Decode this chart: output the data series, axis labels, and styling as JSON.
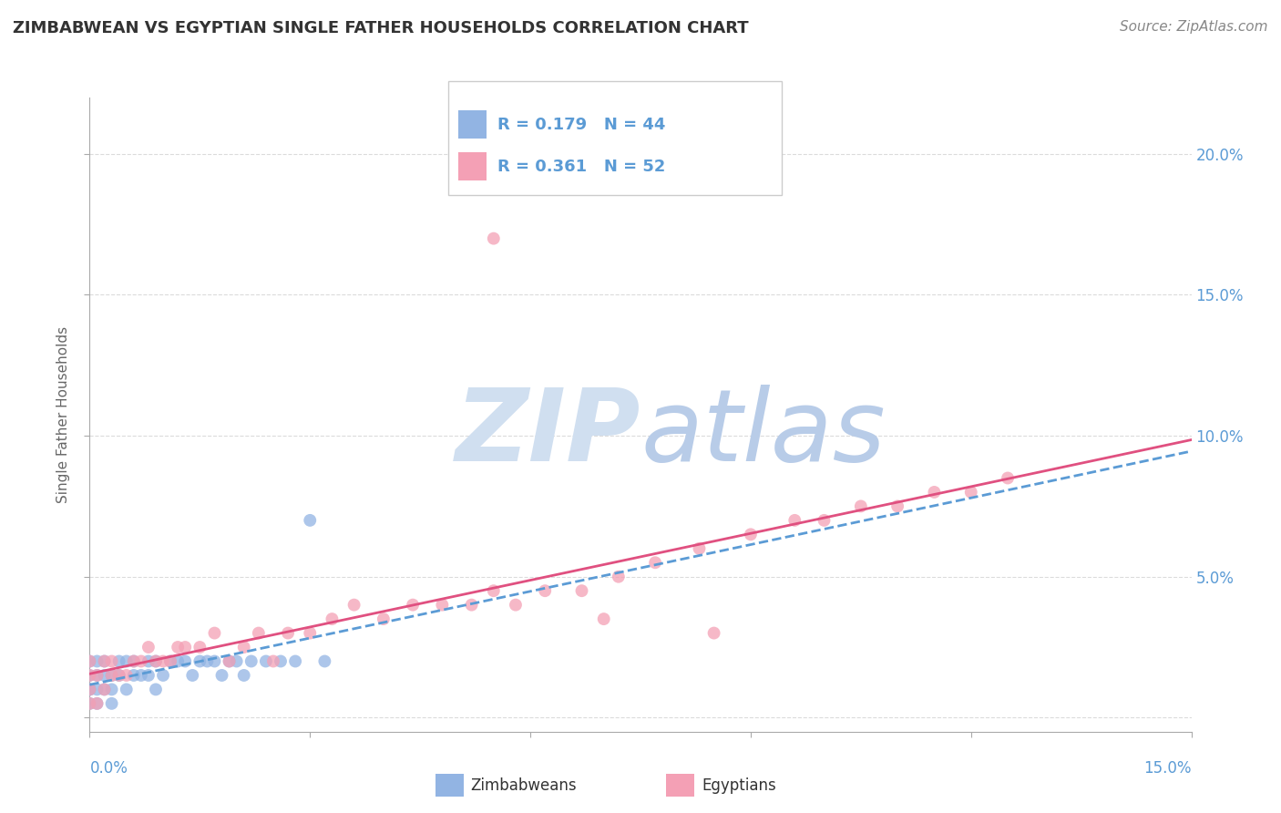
{
  "title": "ZIMBABWEAN VS EGYPTIAN SINGLE FATHER HOUSEHOLDS CORRELATION CHART",
  "source": "Source: ZipAtlas.com",
  "ylabel": "Single Father Households",
  "xmin": 0.0,
  "xmax": 0.15,
  "ymin": -0.005,
  "ymax": 0.22,
  "yticks": [
    0.0,
    0.05,
    0.1,
    0.15,
    0.2
  ],
  "ytick_labels": [
    "",
    "5.0%",
    "10.0%",
    "15.0%",
    "20.0%"
  ],
  "xticks": [
    0.0,
    0.03,
    0.06,
    0.09,
    0.12,
    0.15
  ],
  "r_zimbabwean": 0.179,
  "n_zimbabwean": 44,
  "r_egyptian": 0.361,
  "n_egyptian": 52,
  "zim_color": "#92b4e3",
  "egy_color": "#f4a0b5",
  "zim_line_color": "#5b9bd5",
  "egy_line_color": "#e05080",
  "watermark_color": "#d0dff0",
  "grid_color": "#cccccc",
  "title_color": "#333333",
  "right_label_color": "#5b9bd5",
  "zim_x": [
    0.0,
    0.0,
    0.0,
    0.0,
    0.0,
    0.001,
    0.001,
    0.001,
    0.001,
    0.002,
    0.002,
    0.002,
    0.003,
    0.003,
    0.003,
    0.004,
    0.004,
    0.005,
    0.005,
    0.006,
    0.006,
    0.007,
    0.008,
    0.008,
    0.009,
    0.009,
    0.01,
    0.011,
    0.012,
    0.013,
    0.014,
    0.015,
    0.016,
    0.017,
    0.018,
    0.019,
    0.02,
    0.021,
    0.022,
    0.024,
    0.026,
    0.028,
    0.03,
    0.032
  ],
  "zim_y": [
    0.005,
    0.01,
    0.01,
    0.015,
    0.02,
    0.005,
    0.01,
    0.015,
    0.02,
    0.01,
    0.015,
    0.02,
    0.005,
    0.01,
    0.015,
    0.015,
    0.02,
    0.01,
    0.02,
    0.015,
    0.02,
    0.015,
    0.015,
    0.02,
    0.01,
    0.02,
    0.015,
    0.02,
    0.02,
    0.02,
    0.015,
    0.02,
    0.02,
    0.02,
    0.015,
    0.02,
    0.02,
    0.015,
    0.02,
    0.02,
    0.02,
    0.02,
    0.07,
    0.02
  ],
  "egy_x": [
    0.0,
    0.0,
    0.0,
    0.0,
    0.001,
    0.001,
    0.002,
    0.002,
    0.003,
    0.003,
    0.004,
    0.005,
    0.006,
    0.007,
    0.008,
    0.009,
    0.01,
    0.011,
    0.012,
    0.013,
    0.015,
    0.017,
    0.019,
    0.021,
    0.023,
    0.025,
    0.027,
    0.03,
    0.033,
    0.036,
    0.04,
    0.044,
    0.048,
    0.052,
    0.055,
    0.058,
    0.062,
    0.067,
    0.072,
    0.077,
    0.083,
    0.09,
    0.096,
    0.1,
    0.105,
    0.11,
    0.115,
    0.12,
    0.125,
    0.055,
    0.07,
    0.085
  ],
  "egy_y": [
    0.005,
    0.01,
    0.015,
    0.02,
    0.005,
    0.015,
    0.01,
    0.02,
    0.015,
    0.02,
    0.015,
    0.015,
    0.02,
    0.02,
    0.025,
    0.02,
    0.02,
    0.02,
    0.025,
    0.025,
    0.025,
    0.03,
    0.02,
    0.025,
    0.03,
    0.02,
    0.03,
    0.03,
    0.035,
    0.04,
    0.035,
    0.04,
    0.04,
    0.04,
    0.045,
    0.04,
    0.045,
    0.045,
    0.05,
    0.055,
    0.06,
    0.065,
    0.07,
    0.07,
    0.075,
    0.075,
    0.08,
    0.08,
    0.085,
    0.17,
    0.035,
    0.03
  ]
}
